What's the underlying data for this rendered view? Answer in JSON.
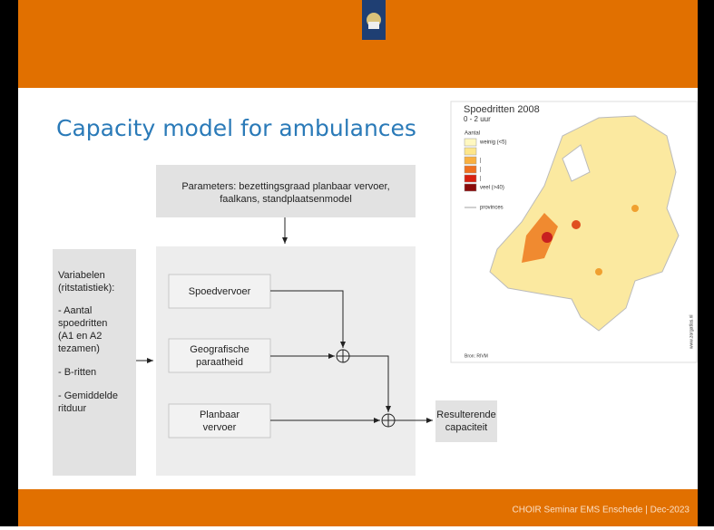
{
  "title": "Capacity model for ambulances",
  "diagram": {
    "parameters": [
      "Parameters: bezettingsgraad planbaar vervoer,",
      "faalkans, standplaatsenmodel"
    ],
    "variables": [
      "Variabelen",
      "(ritstatistiek):",
      "- Aantal",
      "spoedritten",
      "(A1 en A2",
      "tezamen)",
      "- B-ritten",
      "- Gemiddelde",
      "ritduur"
    ],
    "boxes": [
      [
        "Spoedvervoer"
      ],
      [
        "Geografische",
        "paraatheid"
      ],
      [
        "Planbaar",
        "vervoer"
      ]
    ],
    "result": [
      "Resulterende",
      "capaciteit"
    ]
  },
  "map": {
    "title": "Spoedritten 2008",
    "subtitle": "0 - 2 uur",
    "legend_title": "Aantal",
    "legend": [
      "weinig (<5)",
      "|",
      "|",
      "|",
      "veel (>40)"
    ],
    "provinces": "provinces",
    "source": "Bron: RIVM",
    "site": "www.zorgatlas.nl"
  },
  "footer": "CHOIR Seminar EMS Enschede | Dec-2023"
}
